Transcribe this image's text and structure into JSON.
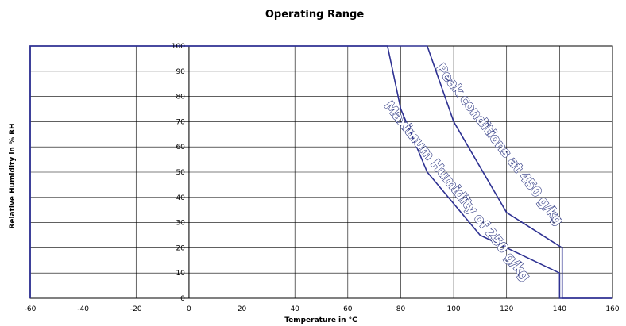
{
  "chart_data": {
    "type": "line",
    "title": "Operating Range",
    "xlabel": "Temperature in °C",
    "ylabel": "Relative Humidity in % RH",
    "xlim": [
      -60,
      160
    ],
    "ylim": [
      0,
      100
    ],
    "x_ticks": [
      "-60",
      "-40",
      "-20",
      "0",
      "20",
      "40",
      "60",
      "80",
      "100",
      "120",
      "140",
      "160"
    ],
    "y_ticks": [
      "0",
      "10",
      "20",
      "30",
      "40",
      "50",
      "60",
      "70",
      "80",
      "90",
      "100"
    ],
    "grid": true,
    "line_color": "#2e3192",
    "series": [
      {
        "name": "Maximum Humidity of 250 g/kg",
        "points": [
          [
            -60,
            0
          ],
          [
            -60,
            100
          ],
          [
            75,
            100
          ],
          [
            80,
            75
          ],
          [
            90,
            50
          ],
          [
            110,
            25
          ],
          [
            140,
            10
          ],
          [
            140,
            0
          ],
          [
            160,
            0
          ]
        ]
      },
      {
        "name": "Peak conditions at 450 g/kg",
        "points": [
          [
            -60,
            0
          ],
          [
            -60,
            100
          ],
          [
            90,
            100
          ],
          [
            100,
            70
          ],
          [
            120,
            34
          ],
          [
            141,
            20
          ],
          [
            141,
            0
          ],
          [
            160,
            0
          ]
        ]
      }
    ],
    "annotations": [
      {
        "text": "Peak conditions at 450 g/kg",
        "x": 116,
        "y": 60,
        "angle_deg": 52.5
      },
      {
        "text": "Maximum Humidity of 250 g/kg",
        "x": 100,
        "y": 41.5,
        "angle_deg": 51.5
      }
    ]
  }
}
